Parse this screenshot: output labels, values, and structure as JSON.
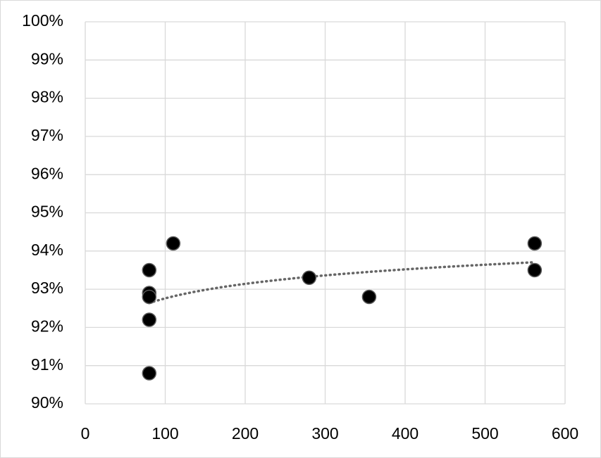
{
  "chart_data": {
    "type": "scatter",
    "x": [
      80,
      80,
      80,
      80,
      80,
      110,
      280,
      355,
      562,
      562
    ],
    "series": [
      {
        "color": "#000000",
        "values": [
          93.5,
          92.9,
          92.8,
          92.2,
          90.8,
          94.2,
          93.3,
          92.8,
          94.2,
          93.5
        ]
      }
    ],
    "xlim": [
      0,
      600
    ],
    "xticks": [
      0,
      100,
      200,
      300,
      400,
      500,
      600
    ],
    "ylim": [
      90,
      100
    ],
    "yticks": [
      {
        "value": 90,
        "label": "90%"
      },
      {
        "value": 91,
        "label": "91%"
      },
      {
        "value": 92,
        "label": "92%"
      },
      {
        "value": 93,
        "label": "93%"
      },
      {
        "value": 94,
        "label": "94%"
      },
      {
        "value": 95,
        "label": "95%"
      },
      {
        "value": 96,
        "label": "96%"
      },
      {
        "value": 97,
        "label": "97%"
      },
      {
        "value": 98,
        "label": "98%"
      },
      {
        "value": 99,
        "label": "99%"
      },
      {
        "value": 100,
        "label": "100%"
      }
    ],
    "grid": true,
    "trendline": "logarithmic",
    "trendline_color": "#666666"
  }
}
